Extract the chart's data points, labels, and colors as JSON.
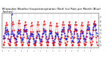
{
  "title": "Milwaukee Weather Evapotranspiration (Red) (vs) Rain per Month (Blue) (Inches)",
  "title_fontsize": 2.8,
  "background_color": "#ffffff",
  "et_color": "#dd0000",
  "rain_color": "#0000cc",
  "grid_color": "#888888",
  "years": [
    "'06",
    "'07",
    "'08",
    "'09",
    "'10",
    "'11",
    "'12",
    "'13",
    "'14",
    "'15",
    "'16",
    "'17",
    "'18",
    "'19",
    "'20"
  ],
  "et_data": [
    0.2,
    0.3,
    0.8,
    2.0,
    3.5,
    5.0,
    5.8,
    5.2,
    3.6,
    1.8,
    0.6,
    0.1,
    0.1,
    0.2,
    0.9,
    2.2,
    3.8,
    5.3,
    6.0,
    5.4,
    3.8,
    2.0,
    0.7,
    0.1,
    0.2,
    0.3,
    1.0,
    2.3,
    3.9,
    5.5,
    6.2,
    5.5,
    4.0,
    2.1,
    0.8,
    0.2,
    0.2,
    0.3,
    0.9,
    2.1,
    3.6,
    5.1,
    5.9,
    5.2,
    3.7,
    1.9,
    0.7,
    0.1,
    0.1,
    0.2,
    0.8,
    2.0,
    3.5,
    4.9,
    5.7,
    5.0,
    3.5,
    1.8,
    0.6,
    0.1,
    0.1,
    0.2,
    0.9,
    2.1,
    3.7,
    5.2,
    5.9,
    5.3,
    3.7,
    2.0,
    0.7,
    0.1,
    0.2,
    0.3,
    1.0,
    2.2,
    3.8,
    5.3,
    6.1,
    5.4,
    3.8,
    2.0,
    0.8,
    0.2,
    0.1,
    0.2,
    0.9,
    2.0,
    3.6,
    5.1,
    5.8,
    5.1,
    3.6,
    1.9,
    0.7,
    0.1,
    0.1,
    0.2,
    0.8,
    1.9,
    3.4,
    4.8,
    5.6,
    4.9,
    3.4,
    1.7,
    0.6,
    0.1,
    0.1,
    0.3,
    0.9,
    2.1,
    3.7,
    5.2,
    5.9,
    5.2,
    3.7,
    2.0,
    0.7,
    0.1,
    0.2,
    0.3,
    1.0,
    2.2,
    3.8,
    5.3,
    6.0,
    5.3,
    3.8,
    2.0,
    0.8,
    0.2,
    0.1,
    0.2,
    0.9,
    2.1,
    3.7,
    5.2,
    5.9,
    5.2,
    3.7,
    1.9,
    0.7,
    0.1,
    0.1,
    0.2,
    0.8,
    2.0,
    3.5,
    5.0,
    5.7,
    5.0,
    3.5,
    1.8,
    0.6,
    0.1,
    0.1,
    0.3,
    0.9,
    2.2,
    3.8,
    5.3,
    6.0,
    5.3,
    3.8,
    2.0,
    0.8,
    0.2,
    0.2,
    0.3,
    1.0,
    2.3,
    3.9,
    5.4,
    6.1,
    5.4,
    3.9,
    2.1,
    0.8,
    0.2
  ],
  "rain_data": [
    1.8,
    2.5,
    2.0,
    3.2,
    4.5,
    3.8,
    2.8,
    4.0,
    3.5,
    3.2,
    2.8,
    1.5,
    1.2,
    1.0,
    1.8,
    3.0,
    7.8,
    3.5,
    3.0,
    2.5,
    2.8,
    2.5,
    2.0,
    1.8,
    0.8,
    1.5,
    2.5,
    3.5,
    3.0,
    4.0,
    3.2,
    3.8,
    3.5,
    2.8,
    2.0,
    1.2,
    1.5,
    1.8,
    2.8,
    4.0,
    3.5,
    5.0,
    3.8,
    3.5,
    4.0,
    3.0,
    2.5,
    2.0,
    1.0,
    0.8,
    1.5,
    2.5,
    2.8,
    3.2,
    2.5,
    3.0,
    2.8,
    2.2,
    1.8,
    1.2,
    0.5,
    0.8,
    1.2,
    2.0,
    2.5,
    3.5,
    3.0,
    2.8,
    2.5,
    2.0,
    1.5,
    1.0,
    1.2,
    1.5,
    2.2,
    3.0,
    3.2,
    4.2,
    3.5,
    3.8,
    3.5,
    2.8,
    2.2,
    1.5,
    0.8,
    1.0,
    1.8,
    2.5,
    3.0,
    3.8,
    3.2,
    3.5,
    3.2,
    2.5,
    2.0,
    1.2,
    0.5,
    0.8,
    1.5,
    2.2,
    2.5,
    3.2,
    2.8,
    3.0,
    2.8,
    2.2,
    1.8,
    1.0,
    1.0,
    1.5,
    2.0,
    2.8,
    3.5,
    4.0,
    3.5,
    4.5,
    4.0,
    3.2,
    2.5,
    1.8,
    1.5,
    1.8,
    2.5,
    3.5,
    4.0,
    5.0,
    4.2,
    4.8,
    4.5,
    3.5,
    3.0,
    2.2,
    1.2,
    1.0,
    2.0,
    3.0,
    3.5,
    4.2,
    3.8,
    4.0,
    3.8,
    3.0,
    2.5,
    1.8,
    0.8,
    1.2,
    1.8,
    2.5,
    3.0,
    3.8,
    3.2,
    3.5,
    3.2,
    2.5,
    2.0,
    1.5,
    1.0,
    1.5,
    2.2,
    3.2,
    4.0,
    4.8,
    4.0,
    4.5,
    4.2,
    3.2,
    2.8,
    2.0,
    1.5,
    2.0,
    2.8,
    4.0,
    4.5,
    5.5,
    4.8,
    5.2,
    5.0,
    4.0,
    3.2,
    2.5
  ],
  "ylim": [
    -0.5,
    8.0
  ],
  "ytick_vals": [
    0,
    1,
    2,
    3,
    4,
    5,
    6,
    7
  ],
  "n_years": 15,
  "n_months": 12,
  "year_tick_positions": [
    0,
    12,
    24,
    36,
    48,
    60,
    72,
    84,
    96,
    108,
    120,
    132,
    144,
    156,
    168
  ]
}
